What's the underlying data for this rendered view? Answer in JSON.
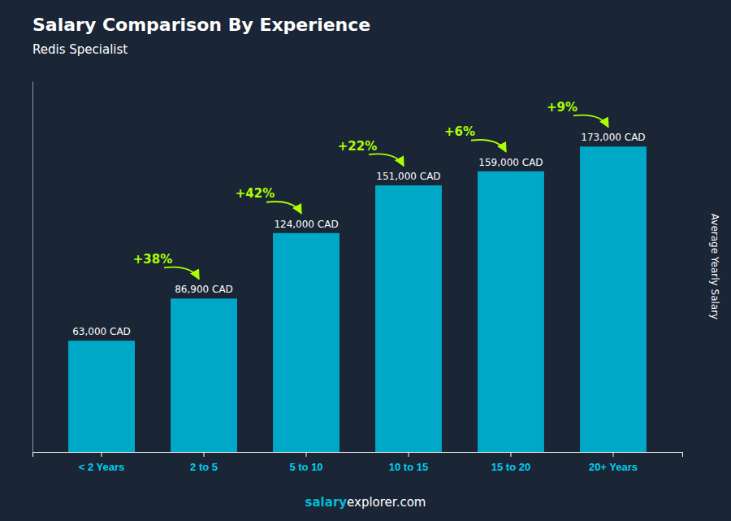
{
  "chart_data": {
    "type": "bar",
    "title": "Salary Comparison By Experience",
    "subtitle": "Redis Specialist",
    "ylabel": "Average Yearly Salary",
    "categories": [
      "< 2 Years",
      "2 to 5",
      "5 to 10",
      "10 to 15",
      "15 to 20",
      "20+ Years"
    ],
    "values": [
      63000,
      86900,
      124000,
      151000,
      159000,
      173000
    ],
    "value_labels": [
      "63,000 CAD",
      "86,900 CAD",
      "124,000 CAD",
      "151,000 CAD",
      "159,000 CAD",
      "173,000 CAD"
    ],
    "data_labels": true,
    "color": "#00a8c8",
    "ylim": [
      0,
      210000
    ],
    "grid": false,
    "tick_labels": "x",
    "annotations": [
      {
        "text": "+38%",
        "to": "2 to 5"
      },
      {
        "text": "+42%",
        "to": "5 to 10"
      },
      {
        "text": "+22%",
        "to": "10 to 15"
      },
      {
        "text": "+6%",
        "to": "15 to 20"
      },
      {
        "text": "+9%",
        "to": "20+ Years"
      }
    ],
    "watermark": [
      "salary",
      "explorer.com"
    ]
  }
}
